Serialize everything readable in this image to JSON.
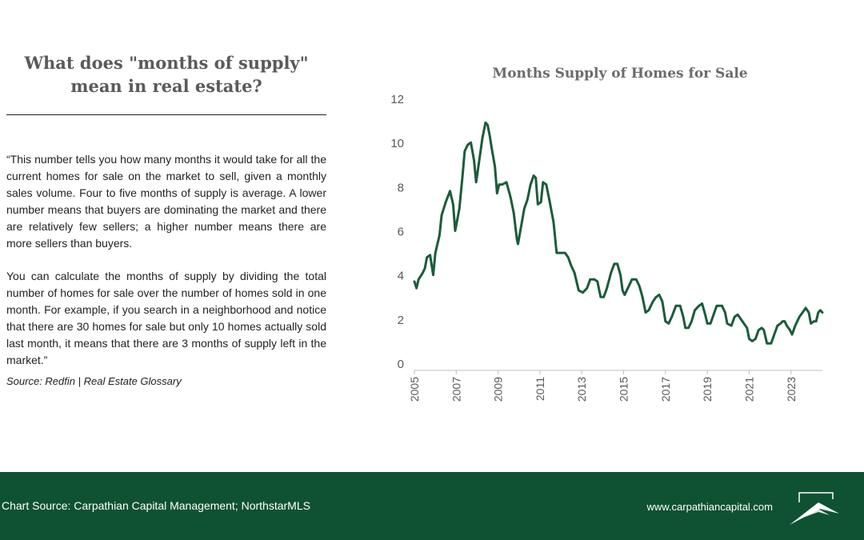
{
  "left": {
    "heading_line1": "What does \"months of supply\"",
    "heading_line2": "mean in real estate?",
    "paragraph1": "“This number tells you how many months it would take for all the current homes for sale on the market to sell, given a monthly sales volume. Four to five months of supply is average. A lower number means that buyers are dominating the market and there are relatively few sellers; a higher number means there are more sellers than buyers.",
    "paragraph2": "You can calculate the months of supply by dividing the total number of homes for sale over the number of homes sold in one month. For example, if you search in a neighborhood and notice that there are 30 homes for sale but only 10 homes actually sold last month, it means that there are 3 months of supply left in the market.”",
    "source": "Source: Redfin | Real Estate Glossary"
  },
  "footer": {
    "chart_source": "Chart Source: Carpathian Capital Management; NorthstarMLS",
    "url": "www.carpathiancapital.com"
  },
  "colors": {
    "line": "#1a5c3a",
    "footer_bg": "#0f5232",
    "heading": "#5a5a5a"
  },
  "chart_data": {
    "type": "line",
    "title": "Months Supply of Homes for Sale",
    "xlabel": "",
    "ylabel": "",
    "xlim": [
      2005,
      2024.5
    ],
    "ylim": [
      0,
      12
    ],
    "yticks": [
      0,
      2,
      4,
      6,
      8,
      10,
      12
    ],
    "xticks": [
      2005,
      2007,
      2009,
      2011,
      2013,
      2015,
      2017,
      2019,
      2021,
      2023
    ],
    "grid": false,
    "series": [
      {
        "points": [
          [
            2005.0,
            3.7
          ],
          [
            2005.1,
            3.4
          ],
          [
            2005.2,
            3.8
          ],
          [
            2005.4,
            4.1
          ],
          [
            2005.5,
            4.3
          ],
          [
            2005.6,
            4.8
          ],
          [
            2005.75,
            4.9
          ],
          [
            2005.9,
            4.0
          ],
          [
            2006.0,
            5.0
          ],
          [
            2006.2,
            5.8
          ],
          [
            2006.3,
            6.7
          ],
          [
            2006.5,
            7.3
          ],
          [
            2006.7,
            7.8
          ],
          [
            2006.85,
            7.2
          ],
          [
            2006.95,
            6.0
          ],
          [
            2007.15,
            7.0
          ],
          [
            2007.3,
            8.5
          ],
          [
            2007.4,
            9.6
          ],
          [
            2007.55,
            9.9
          ],
          [
            2007.7,
            10.0
          ],
          [
            2007.85,
            9.2
          ],
          [
            2007.95,
            8.2
          ],
          [
            2008.1,
            9.2
          ],
          [
            2008.25,
            10.2
          ],
          [
            2008.4,
            10.9
          ],
          [
            2008.5,
            10.8
          ],
          [
            2008.6,
            10.3
          ],
          [
            2008.7,
            9.7
          ],
          [
            2008.85,
            8.9
          ],
          [
            2008.95,
            7.7
          ],
          [
            2009.05,
            8.1
          ],
          [
            2009.2,
            8.1
          ],
          [
            2009.4,
            8.2
          ],
          [
            2009.6,
            7.5
          ],
          [
            2009.75,
            6.8
          ],
          [
            2009.9,
            5.6
          ],
          [
            2009.95,
            5.4
          ],
          [
            2010.1,
            6.2
          ],
          [
            2010.25,
            7.0
          ],
          [
            2010.4,
            7.4
          ],
          [
            2010.55,
            8.1
          ],
          [
            2010.7,
            8.5
          ],
          [
            2010.8,
            8.4
          ],
          [
            2010.9,
            7.2
          ],
          [
            2011.05,
            7.3
          ],
          [
            2011.15,
            8.2
          ],
          [
            2011.3,
            8.1
          ],
          [
            2011.45,
            7.4
          ],
          [
            2011.65,
            6.4
          ],
          [
            2011.8,
            5.0
          ],
          [
            2012.0,
            5.0
          ],
          [
            2012.2,
            5.0
          ],
          [
            2012.35,
            4.8
          ],
          [
            2012.5,
            4.4
          ],
          [
            2012.65,
            4.1
          ],
          [
            2012.85,
            3.3
          ],
          [
            2013.05,
            3.2
          ],
          [
            2013.25,
            3.4
          ],
          [
            2013.4,
            3.8
          ],
          [
            2013.6,
            3.8
          ],
          [
            2013.75,
            3.7
          ],
          [
            2013.9,
            3.0
          ],
          [
            2014.05,
            3.0
          ],
          [
            2014.2,
            3.4
          ],
          [
            2014.4,
            4.1
          ],
          [
            2014.55,
            4.5
          ],
          [
            2014.7,
            4.5
          ],
          [
            2014.85,
            4.0
          ],
          [
            2014.95,
            3.3
          ],
          [
            2015.05,
            3.1
          ],
          [
            2015.2,
            3.4
          ],
          [
            2015.4,
            3.8
          ],
          [
            2015.6,
            3.8
          ],
          [
            2015.75,
            3.5
          ],
          [
            2015.9,
            3.0
          ],
          [
            2016.05,
            2.3
          ],
          [
            2016.2,
            2.4
          ],
          [
            2016.4,
            2.8
          ],
          [
            2016.55,
            3.0
          ],
          [
            2016.7,
            3.1
          ],
          [
            2016.85,
            2.8
          ],
          [
            2017.0,
            1.9
          ],
          [
            2017.15,
            1.8
          ],
          [
            2017.3,
            2.1
          ],
          [
            2017.5,
            2.6
          ],
          [
            2017.7,
            2.6
          ],
          [
            2017.85,
            2.1
          ],
          [
            2017.95,
            1.6
          ],
          [
            2018.1,
            1.6
          ],
          [
            2018.25,
            1.9
          ],
          [
            2018.4,
            2.4
          ],
          [
            2018.6,
            2.6
          ],
          [
            2018.75,
            2.7
          ],
          [
            2018.9,
            2.2
          ],
          [
            2019.0,
            1.8
          ],
          [
            2019.15,
            1.8
          ],
          [
            2019.3,
            2.2
          ],
          [
            2019.45,
            2.6
          ],
          [
            2019.7,
            2.6
          ],
          [
            2019.85,
            2.3
          ],
          [
            2019.95,
            1.8
          ],
          [
            2020.15,
            1.7
          ],
          [
            2020.3,
            2.1
          ],
          [
            2020.45,
            2.2
          ],
          [
            2020.6,
            2.0
          ],
          [
            2020.75,
            1.8
          ],
          [
            2020.9,
            1.6
          ],
          [
            2021.0,
            1.1
          ],
          [
            2021.15,
            1.0
          ],
          [
            2021.3,
            1.1
          ],
          [
            2021.45,
            1.5
          ],
          [
            2021.6,
            1.6
          ],
          [
            2021.7,
            1.5
          ],
          [
            2021.85,
            0.9
          ],
          [
            2022.05,
            0.9
          ],
          [
            2022.2,
            1.3
          ],
          [
            2022.35,
            1.7
          ],
          [
            2022.5,
            1.8
          ],
          [
            2022.6,
            1.9
          ],
          [
            2022.7,
            1.9
          ],
          [
            2022.8,
            1.7
          ],
          [
            2022.95,
            1.5
          ],
          [
            2023.05,
            1.3
          ],
          [
            2023.2,
            1.7
          ],
          [
            2023.4,
            2.1
          ],
          [
            2023.55,
            2.3
          ],
          [
            2023.7,
            2.5
          ],
          [
            2023.85,
            2.3
          ],
          [
            2023.95,
            1.8
          ],
          [
            2024.1,
            1.9
          ],
          [
            2024.2,
            1.9
          ],
          [
            2024.3,
            2.3
          ],
          [
            2024.4,
            2.4
          ],
          [
            2024.5,
            2.3
          ]
        ]
      }
    ]
  }
}
